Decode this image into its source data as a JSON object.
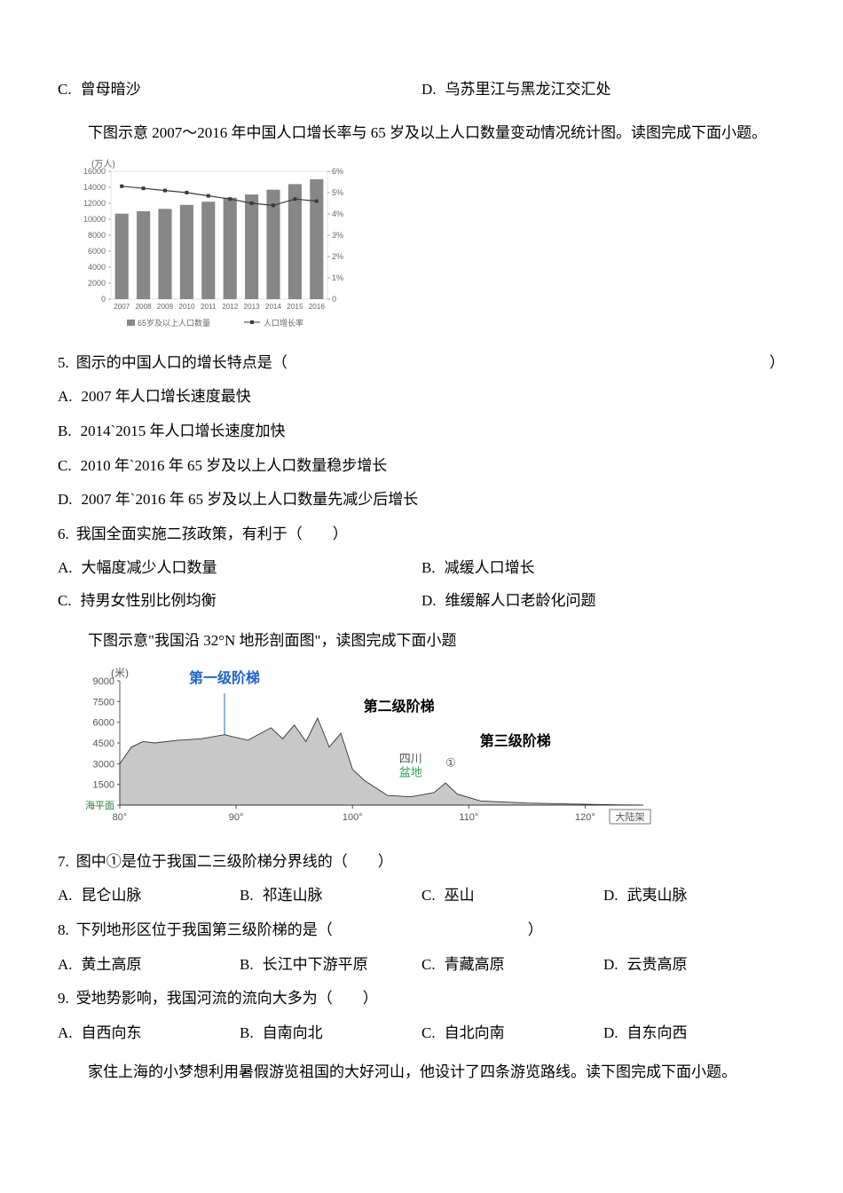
{
  "top_options": {
    "c": {
      "label": "C.",
      "text": "曾母暗沙"
    },
    "d": {
      "label": "D.",
      "text": "乌苏里江与黑龙江交汇处"
    }
  },
  "passage1": "下图示意 2007～2016 年中国人口增长率与 65 岁及以上人口数量变动情况统计图。读图完成下面小题。",
  "chart1": {
    "type": "bar+line",
    "y_left_label": "(万人)",
    "y_left_ticks": [
      "0",
      "2000",
      "4000",
      "6000",
      "8000",
      "10000",
      "12000",
      "14000",
      "16000"
    ],
    "y_left_max": 16000,
    "y_right_ticks": [
      "0",
      "1%",
      "2%",
      "3%",
      "4%",
      "5%",
      "6%"
    ],
    "y_right_max": 6,
    "years": [
      "2007",
      "2008",
      "2009",
      "2010",
      "2011",
      "2012",
      "2013",
      "2014",
      "2015",
      "2016"
    ],
    "bar_values": [
      10700,
      11000,
      11300,
      11800,
      12200,
      12700,
      13100,
      13700,
      14400,
      15000
    ],
    "line_values": [
      5.3,
      5.2,
      5.1,
      5.0,
      4.85,
      4.7,
      4.5,
      4.4,
      4.7,
      4.6
    ],
    "bar_color": "#878787",
    "line_color": "#3a3a3a",
    "grid_color": "#d0d0d0",
    "text_color": "#666666",
    "legend_bar": "65岁及以上人口数量",
    "legend_line": "人口增长率"
  },
  "q5": {
    "num": "5.",
    "text": "图示的中国人口的增长特点是（",
    "close": "）",
    "a": {
      "label": "A.",
      "text": "2007 年人口增长速度最快"
    },
    "b": {
      "label": "B.",
      "text": "2014`2015 年人口增长速度加快"
    },
    "c": {
      "label": "C.",
      "text": "2010 年`2016 年 65 岁及以上人口数量稳步增长"
    },
    "d": {
      "label": "D.",
      "text": "2007 年`2016 年 65 岁及以上人口数量先减少后增长"
    }
  },
  "q6": {
    "num": "6.",
    "text": "我国全面实施二孩政策，有利于（　　）",
    "a": {
      "label": "A.",
      "text": "大幅度减少人口数量"
    },
    "b": {
      "label": "B.",
      "text": "减缓人口增长"
    },
    "c": {
      "label": "C.",
      "text": "持男女性别比例均衡"
    },
    "d": {
      "label": "D.",
      "text": "维缓解人口老龄化问题"
    }
  },
  "passage2": "下图示意\"我国沿 32°N 地形剖面图\"，读图完成下面小题",
  "chart2": {
    "type": "profile",
    "y_label": "(米)",
    "y_ticks": [
      "海平面",
      "1500",
      "3000",
      "4500",
      "6000",
      "7500",
      "9000"
    ],
    "y_max": 9000,
    "x_ticks": [
      "80°",
      "90°",
      "100°",
      "110°",
      "120°"
    ],
    "x_end": "大陆架",
    "labels": {
      "step1": "第一级阶梯",
      "step2": "第二级阶梯",
      "step3": "第三级阶梯",
      "basin": "四川盆地",
      "marker": "①"
    },
    "step1_color": "#2063c9",
    "basin_color": "#2a9d4f",
    "fill_color": "#c8c8c8",
    "line_color": "#333333",
    "axis_color": "#555555"
  },
  "q7": {
    "num": "7.",
    "text": "图中①是位于我国二三级阶梯分界线的（　　）",
    "a": {
      "label": "A.",
      "text": "昆仑山脉"
    },
    "b": {
      "label": "B.",
      "text": "祁连山脉"
    },
    "c": {
      "label": "C.",
      "text": "巫山"
    },
    "d": {
      "label": "D.",
      "text": "武夷山脉"
    }
  },
  "q8": {
    "num": "8.",
    "text": "下列地形区位于我国第三级阶梯的是（",
    "close": "）",
    "a": {
      "label": "A.",
      "text": "黄土高原"
    },
    "b": {
      "label": "B.",
      "text": "长江中下游平原"
    },
    "c": {
      "label": "C.",
      "text": "青藏高原"
    },
    "d": {
      "label": "D.",
      "text": "云贵高原"
    }
  },
  "q9": {
    "num": "9.",
    "text": "受地势影响，我国河流的流向大多为（　　）",
    "a": {
      "label": "A.",
      "text": "自西向东"
    },
    "b": {
      "label": "B.",
      "text": "自南向北"
    },
    "c": {
      "label": "C.",
      "text": "自北向南"
    },
    "d": {
      "label": "D.",
      "text": "自东向西"
    }
  },
  "passage3": "家住上海的小梦想利用暑假游览祖国的大好河山，他设计了四条游览路线。读下图完成下面小题。"
}
